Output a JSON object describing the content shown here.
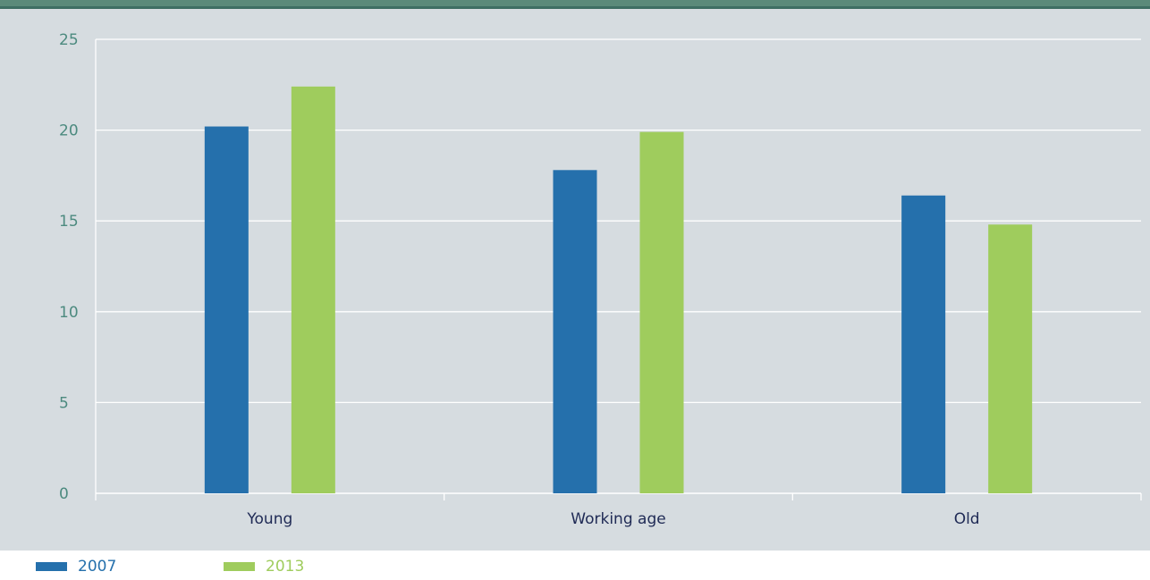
{
  "chart_data": {
    "type": "bar",
    "categories": [
      "Young",
      "Working age",
      "Old"
    ],
    "series": [
      {
        "name": "2007",
        "color": "#2570ac",
        "values": [
          20.2,
          17.8,
          16.4
        ]
      },
      {
        "name": "2013",
        "color": "#9fcc5d",
        "values": [
          22.4,
          19.9,
          14.8
        ]
      }
    ],
    "title": "",
    "xlabel": "",
    "ylabel": "",
    "ylim": [
      0,
      25
    ],
    "yticks": [
      "0",
      "5",
      "10",
      "15",
      "20",
      "25"
    ],
    "grid": true,
    "legend_position": "bottom-left"
  },
  "colors": {
    "panel_background": "#d6dce0",
    "gridline": "#ffffff",
    "y_tick_text": "#4c8a7f",
    "x_tick_text": "#1f2a55",
    "header_strip": "#5b8a7a"
  }
}
